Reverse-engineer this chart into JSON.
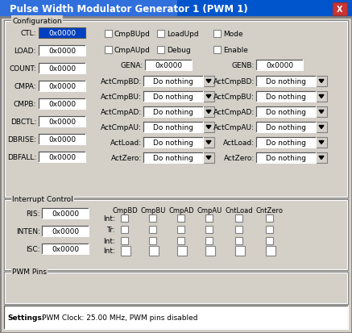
{
  "title": "Pulse Width Modulator Generator 1 (PWM 1)",
  "title_bar_color": "#0055CC",
  "title_text_color": "#FFFFFF",
  "bg_color": "#D4D0C8",
  "panel_bg": "#D4D0C8",
  "field_bg": "#FFFFFF",
  "field_selected_bg": "#0040C0",
  "field_selected_text": "#FFFFFF",
  "field_text": "#000000",
  "left_labels": [
    "CTL:",
    "LOAD:",
    "COUNT:",
    "CMPA:",
    "CMPB:",
    "DBCTL:",
    "DBRISE:",
    "DBFALL:"
  ],
  "left_values": [
    "0x0000",
    "0x0000",
    "0x0000",
    "0x0000",
    "0x0000",
    "0x0000",
    "0x0000",
    "0x0000"
  ],
  "left_selected": [
    0
  ],
  "checkboxes_row1": [
    "CmpBUpd",
    "LoadUpd",
    "Mode"
  ],
  "checkboxes_row2": [
    "CmpAUpd",
    "Debug",
    "Enable"
  ],
  "gena_label": "GENA:",
  "gena_value": "0x0000",
  "genb_label": "GENB:",
  "genb_value": "0x0000",
  "act_labels_left": [
    "ActCmpBD:",
    "ActCmpBU:",
    "ActCmpAD:",
    "ActCmpAU:",
    "ActLoad:",
    "ActZero:"
  ],
  "act_labels_right": [
    "ActCmpBD:",
    "ActCmpBU:",
    "ActCmpAD:",
    "ActCmpAU:",
    "ActLoad:",
    "ActZero:"
  ],
  "act_value": "Do nothing",
  "config_section": "Configuration",
  "interrupt_section": "Interrupt Control",
  "pwm_pins_section": "PWM Pins",
  "int_left_labels": [
    "RIS:",
    "INTEN:",
    "ISC:"
  ],
  "int_left_values": [
    "0x0000",
    "0x0000",
    "0x0000"
  ],
  "int_col_headers": [
    "CmpBD",
    "CmpBU",
    "CmpAD",
    "CmpAU",
    "CntLoad",
    "CntZero"
  ],
  "int_row_labels": [
    "Int:",
    "Tr:",
    "Int:",
    "Int:"
  ],
  "settings_label": "Settings:",
  "settings_text": "PWM Clock: 25.00 MHz, PWM pins disabled",
  "font_size": 6.5,
  "font_family": "DejaVu Sans"
}
